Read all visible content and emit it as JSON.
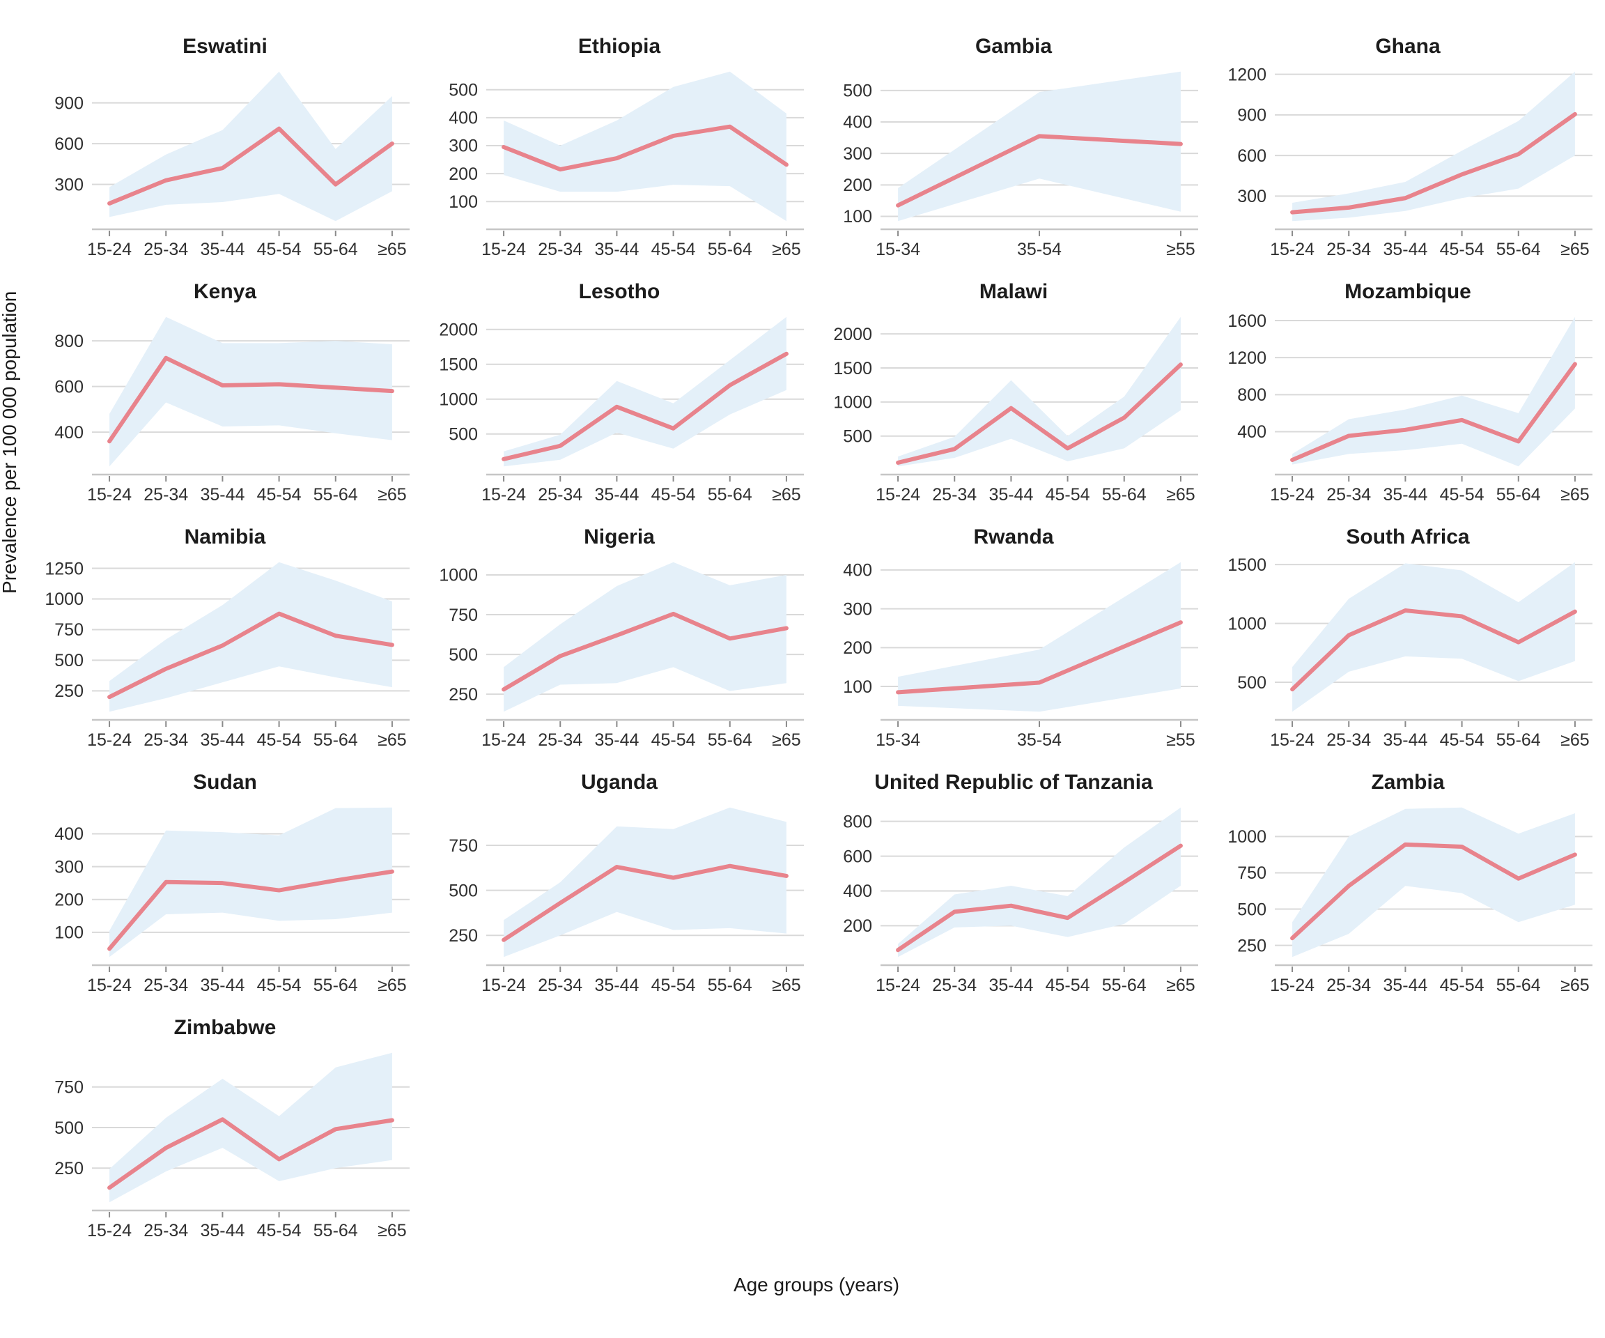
{
  "figure": {
    "ylabel": "Prevalence per 100 000 population",
    "xlabel": "Age groups (years)",
    "colors": {
      "line": "#e8838c",
      "band": "#e4f0f9",
      "gridline": "#d9d9d9",
      "axis_line": "#c6c6c6",
      "tick_mark": "#8a8a8a",
      "tick_text": "#303030",
      "title_text": "#1c1c1c"
    }
  },
  "chart_data": [
    {
      "type": "line",
      "title": "Eswatini",
      "categories": [
        "15-24",
        "25-34",
        "35-44",
        "45-54",
        "55-64",
        "≥65"
      ],
      "yticks": [
        300,
        600,
        900
      ],
      "series": [
        {
          "name": "prevalence",
          "values": [
            160,
            330,
            420,
            710,
            300,
            600
          ]
        },
        {
          "name": "ci_lower",
          "values": [
            60,
            150,
            170,
            230,
            30,
            250
          ]
        },
        {
          "name": "ci_upper",
          "values": [
            280,
            520,
            700,
            1130,
            560,
            950
          ]
        }
      ]
    },
    {
      "type": "line",
      "title": "Ethiopia",
      "categories": [
        "15-24",
        "25-34",
        "35-44",
        "45-54",
        "55-64",
        "≥65"
      ],
      "yticks": [
        100,
        200,
        300,
        400,
        500
      ],
      "series": [
        {
          "name": "prevalence",
          "values": [
            295,
            215,
            255,
            335,
            368,
            232
          ]
        },
        {
          "name": "ci_lower",
          "values": [
            195,
            135,
            135,
            160,
            155,
            30
          ]
        },
        {
          "name": "ci_upper",
          "values": [
            390,
            300,
            390,
            510,
            565,
            415
          ]
        }
      ]
    },
    {
      "type": "line",
      "title": "Gambia",
      "categories": [
        "15-34",
        "35-54",
        "≥55"
      ],
      "yticks": [
        100,
        200,
        300,
        400,
        500
      ],
      "series": [
        {
          "name": "prevalence",
          "values": [
            135,
            355,
            330
          ]
        },
        {
          "name": "ci_lower",
          "values": [
            85,
            220,
            115
          ]
        },
        {
          "name": "ci_upper",
          "values": [
            190,
            495,
            560
          ]
        }
      ]
    },
    {
      "type": "line",
      "title": "Ghana",
      "categories": [
        "15-24",
        "25-34",
        "35-44",
        "45-54",
        "55-64",
        "≥65"
      ],
      "yticks": [
        300,
        600,
        900,
        1200
      ],
      "series": [
        {
          "name": "prevalence",
          "values": [
            180,
            215,
            285,
            460,
            610,
            905
          ]
        },
        {
          "name": "ci_lower",
          "values": [
            115,
            140,
            190,
            285,
            355,
            600
          ]
        },
        {
          "name": "ci_upper",
          "values": [
            250,
            320,
            405,
            635,
            855,
            1220
          ]
        }
      ]
    },
    {
      "type": "line",
      "title": "Kenya",
      "categories": [
        "15-24",
        "25-34",
        "35-44",
        "45-54",
        "55-64",
        "≥65"
      ],
      "yticks": [
        400,
        600,
        800
      ],
      "series": [
        {
          "name": "prevalence",
          "values": [
            360,
            725,
            605,
            610,
            595,
            580
          ]
        },
        {
          "name": "ci_lower",
          "values": [
            250,
            530,
            425,
            430,
            395,
            365
          ]
        },
        {
          "name": "ci_upper",
          "values": [
            480,
            905,
            790,
            790,
            800,
            785
          ]
        }
      ]
    },
    {
      "type": "line",
      "title": "Lesotho",
      "categories": [
        "15-24",
        "25-34",
        "35-44",
        "45-54",
        "55-64",
        "≥65"
      ],
      "yticks": [
        500,
        1000,
        1500,
        2000
      ],
      "series": [
        {
          "name": "prevalence",
          "values": [
            140,
            330,
            890,
            580,
            1200,
            1650
          ]
        },
        {
          "name": "ci_lower",
          "values": [
            35,
            130,
            520,
            290,
            780,
            1130
          ]
        },
        {
          "name": "ci_upper",
          "values": [
            250,
            490,
            1260,
            940,
            1560,
            2180
          ]
        }
      ]
    },
    {
      "type": "line",
      "title": "Malawi",
      "categories": [
        "15-24",
        "25-34",
        "35-44",
        "45-54",
        "55-64",
        "≥65"
      ],
      "yticks": [
        500,
        1000,
        1500,
        2000
      ],
      "series": [
        {
          "name": "prevalence",
          "values": [
            110,
            310,
            910,
            320,
            770,
            1550
          ]
        },
        {
          "name": "ci_lower",
          "values": [
            55,
            180,
            460,
            130,
            320,
            880
          ]
        },
        {
          "name": "ci_upper",
          "values": [
            200,
            490,
            1320,
            500,
            1080,
            2250
          ]
        }
      ]
    },
    {
      "type": "line",
      "title": "Mozambique",
      "categories": [
        "15-24",
        "25-34",
        "35-44",
        "45-54",
        "55-64",
        "≥65"
      ],
      "yticks": [
        400,
        800,
        1200,
        1600
      ],
      "series": [
        {
          "name": "prevalence",
          "values": [
            95,
            355,
            420,
            525,
            295,
            1130
          ]
        },
        {
          "name": "ci_lower",
          "values": [
            45,
            160,
            200,
            270,
            25,
            650
          ]
        },
        {
          "name": "ci_upper",
          "values": [
            160,
            535,
            640,
            790,
            600,
            1640
          ]
        }
      ]
    },
    {
      "type": "line",
      "title": "Namibia",
      "categories": [
        "15-24",
        "25-34",
        "35-44",
        "45-54",
        "55-64",
        "≥65"
      ],
      "yticks": [
        250,
        500,
        750,
        1000,
        1250
      ],
      "series": [
        {
          "name": "prevalence",
          "values": [
            200,
            430,
            620,
            880,
            700,
            625
          ]
        },
        {
          "name": "ci_lower",
          "values": [
            80,
            190,
            320,
            450,
            360,
            280
          ]
        },
        {
          "name": "ci_upper",
          "values": [
            330,
            670,
            950,
            1300,
            1150,
            980
          ]
        }
      ]
    },
    {
      "type": "line",
      "title": "Nigeria",
      "categories": [
        "15-24",
        "25-34",
        "35-44",
        "45-54",
        "55-64",
        "≥65"
      ],
      "yticks": [
        250,
        500,
        750,
        1000
      ],
      "series": [
        {
          "name": "prevalence",
          "values": [
            280,
            490,
            620,
            755,
            600,
            665
          ]
        },
        {
          "name": "ci_lower",
          "values": [
            140,
            310,
            320,
            420,
            270,
            320
          ]
        },
        {
          "name": "ci_upper",
          "values": [
            420,
            690,
            930,
            1080,
            935,
            1000
          ]
        }
      ]
    },
    {
      "type": "line",
      "title": "Rwanda",
      "categories": [
        "15-34",
        "35-54",
        "≥55"
      ],
      "yticks": [
        100,
        200,
        300,
        400
      ],
      "series": [
        {
          "name": "prevalence",
          "values": [
            85,
            110,
            265
          ]
        },
        {
          "name": "ci_lower",
          "values": [
            50,
            35,
            95
          ]
        },
        {
          "name": "ci_upper",
          "values": [
            125,
            195,
            420
          ]
        }
      ]
    },
    {
      "type": "line",
      "title": "South Africa",
      "categories": [
        "15-24",
        "25-34",
        "35-44",
        "45-54",
        "55-64",
        "≥65"
      ],
      "yticks": [
        500,
        1000,
        1500
      ],
      "series": [
        {
          "name": "prevalence",
          "values": [
            440,
            900,
            1110,
            1060,
            840,
            1100
          ]
        },
        {
          "name": "ci_lower",
          "values": [
            250,
            590,
            720,
            700,
            510,
            680
          ]
        },
        {
          "name": "ci_upper",
          "values": [
            630,
            1210,
            1510,
            1450,
            1180,
            1520
          ]
        }
      ]
    },
    {
      "type": "line",
      "title": "Sudan",
      "categories": [
        "15-24",
        "25-34",
        "35-44",
        "45-54",
        "55-64",
        "≥65"
      ],
      "yticks": [
        100,
        200,
        300,
        400
      ],
      "series": [
        {
          "name": "prevalence",
          "values": [
            50,
            253,
            250,
            228,
            258,
            285
          ]
        },
        {
          "name": "ci_lower",
          "values": [
            25,
            155,
            160,
            135,
            140,
            160
          ]
        },
        {
          "name": "ci_upper",
          "values": [
            105,
            410,
            405,
            395,
            478,
            480
          ]
        }
      ]
    },
    {
      "type": "line",
      "title": "Uganda",
      "categories": [
        "15-24",
        "25-34",
        "35-44",
        "45-54",
        "55-64",
        "≥65"
      ],
      "yticks": [
        250,
        500,
        750
      ],
      "series": [
        {
          "name": "prevalence",
          "values": [
            225,
            430,
            630,
            570,
            635,
            580
          ]
        },
        {
          "name": "ci_lower",
          "values": [
            130,
            250,
            380,
            280,
            290,
            260
          ]
        },
        {
          "name": "ci_upper",
          "values": [
            335,
            545,
            855,
            840,
            960,
            880
          ]
        }
      ]
    },
    {
      "type": "line",
      "title": "United Republic of Tanzania",
      "categories": [
        "15-24",
        "25-34",
        "35-44",
        "45-54",
        "55-64",
        "≥65"
      ],
      "yticks": [
        200,
        400,
        600,
        800
      ],
      "series": [
        {
          "name": "prevalence",
          "values": [
            60,
            280,
            315,
            245,
            450,
            660
          ]
        },
        {
          "name": "ci_lower",
          "values": [
            20,
            190,
            200,
            135,
            210,
            430
          ]
        },
        {
          "name": "ci_upper",
          "values": [
            95,
            380,
            430,
            370,
            650,
            880
          ]
        }
      ]
    },
    {
      "type": "line",
      "title": "Zambia",
      "categories": [
        "15-24",
        "25-34",
        "35-44",
        "45-54",
        "55-64",
        "≥65"
      ],
      "yticks": [
        250,
        500,
        750,
        1000
      ],
      "series": [
        {
          "name": "prevalence",
          "values": [
            300,
            660,
            945,
            930,
            710,
            875
          ]
        },
        {
          "name": "ci_lower",
          "values": [
            170,
            330,
            660,
            610,
            410,
            530
          ]
        },
        {
          "name": "ci_upper",
          "values": [
            410,
            1000,
            1190,
            1200,
            1020,
            1160
          ]
        }
      ]
    },
    {
      "type": "line",
      "title": "Zimbabwe",
      "categories": [
        "15-24",
        "25-34",
        "35-44",
        "45-54",
        "55-64",
        "≥65"
      ],
      "yticks": [
        250,
        500,
        750
      ],
      "series": [
        {
          "name": "prevalence",
          "values": [
            130,
            375,
            550,
            305,
            490,
            545
          ]
        },
        {
          "name": "ci_lower",
          "values": [
            40,
            230,
            375,
            170,
            250,
            300
          ]
        },
        {
          "name": "ci_upper",
          "values": [
            245,
            560,
            800,
            570,
            870,
            960
          ]
        }
      ]
    }
  ]
}
